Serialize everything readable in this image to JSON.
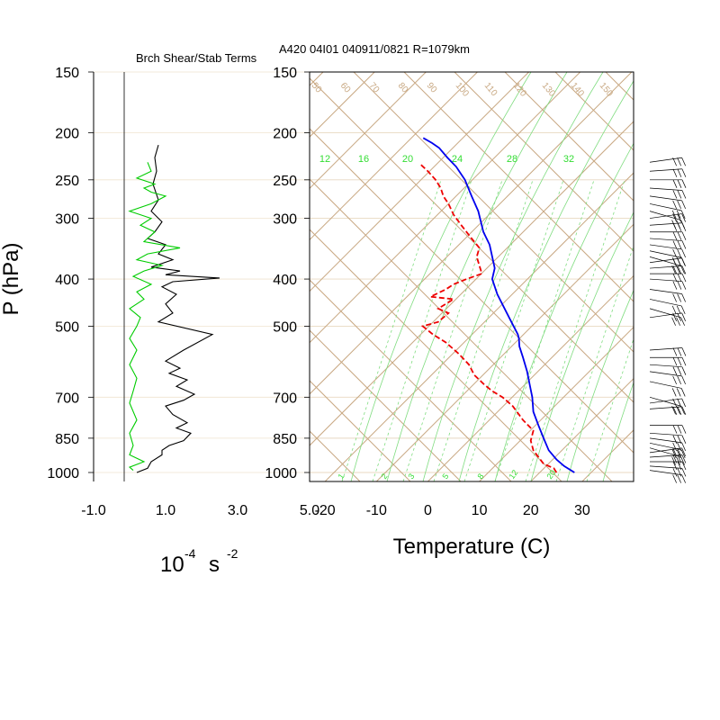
{
  "header": {
    "left_title": "Brch Shear/Stab Terms",
    "right_title": "A420 04I01 040911/0821 R=1079km"
  },
  "left_panel": {
    "ylabel": "P (hPa)",
    "xlabel_base": "10",
    "xlabel_exp": "-4",
    "xlabel_unit": "s",
    "xlabel_exp2": "-2"
  },
  "right_panel": {
    "xlabel": "Temperature (C)"
  },
  "chart_data": [
    {
      "type": "line",
      "panel": "shear-stability",
      "title": "Brch Shear/Stab Terms",
      "xlim": [
        -1.0,
        5.0
      ],
      "xticks": [
        -1.0,
        1.0,
        3.0,
        5.0
      ],
      "xtick_labels": [
        "-1.0",
        "1.0",
        "3.0",
        "5.0"
      ],
      "ylabel": "P (hPa)",
      "ylim": [
        1000,
        150
      ],
      "y_scale": "log",
      "yticks": [
        150,
        200,
        250,
        300,
        400,
        500,
        700,
        850,
        1000
      ],
      "ytick_labels": [
        "150",
        "200",
        "250",
        "300",
        "400",
        "500",
        "700",
        "850",
        "1000"
      ],
      "zero_line": 0,
      "series": [
        {
          "color": "#000000",
          "x": [
            0.8,
            0.7,
            0.75,
            0.65,
            0.8,
            0.6,
            0.9,
            0.7,
            0.5,
            1.0,
            0.8,
            1.2,
            0.6,
            1.4,
            1.0,
            2.5,
            1.2,
            0.9,
            1.3,
            1.0,
            1.2,
            0.8,
            2.3,
            1.5,
            1.0,
            1.4,
            1.1,
            1.6,
            1.3,
            1.8,
            1.5,
            1.0,
            1.2,
            1.6,
            1.3,
            1.7,
            1.5,
            1.1,
            0.9,
            0.9,
            0.6,
            0.5,
            0.2
          ],
          "p": [
            212,
            225,
            240,
            255,
            275,
            290,
            305,
            320,
            330,
            340,
            355,
            365,
            378,
            385,
            392,
            398,
            405,
            415,
            430,
            450,
            470,
            490,
            520,
            560,
            590,
            610,
            625,
            645,
            665,
            690,
            710,
            730,
            760,
            790,
            810,
            830,
            860,
            880,
            900,
            920,
            950,
            980,
            1000
          ]
        },
        {
          "color": "#00cc00",
          "x": [
            0.5,
            0.6,
            0.2,
            0.7,
            0.4,
            0.6,
            1.0,
            0.6,
            0.0,
            0.6,
            0.3,
            0.7,
            0.4,
            1.4,
            0.5,
            0.2,
            0.9,
            0.4,
            0.1,
            0.6,
            0.2,
            0.4,
            0.0,
            0.3,
            0.2,
            0.0,
            0.2,
            0.0,
            0.2,
            0.1,
            0.0,
            0.2,
            0.0,
            0.1,
            0.0,
            0.4,
            0.0,
            0.1
          ],
          "p": [
            230,
            240,
            248,
            255,
            260,
            265,
            270,
            280,
            290,
            300,
            310,
            320,
            335,
            345,
            355,
            365,
            375,
            385,
            395,
            410,
            425,
            440,
            460,
            480,
            500,
            530,
            560,
            600,
            640,
            680,
            720,
            780,
            830,
            880,
            920,
            950,
            975,
            990
          ]
        }
      ]
    },
    {
      "type": "line",
      "panel": "skew-t",
      "title": "A420 04I01 040911/0821 R=1079km",
      "xlabel": "Temperature (C)",
      "xlim": [
        -23,
        40
      ],
      "xticks": [
        -20,
        -10,
        0,
        10,
        20,
        30
      ],
      "xtick_labels": [
        "-20",
        "-10",
        "0",
        "10",
        "20",
        "30"
      ],
      "ylim": [
        1000,
        150
      ],
      "y_scale": "log",
      "yticks": [
        150,
        200,
        250,
        300,
        400,
        500,
        700,
        850,
        1000
      ],
      "ytick_labels": [
        "150",
        "200",
        "250",
        "300",
        "400",
        "500",
        "700",
        "850",
        "1000"
      ],
      "skew_deg_per_log_decade": 89.7,
      "isobars": [
        150,
        200,
        250,
        300,
        400,
        500,
        700,
        850,
        1000
      ],
      "top_isotherm_labels": [
        "50",
        "60",
        "70",
        "80",
        "90",
        "100",
        "110",
        "120",
        "130",
        "140",
        "150"
      ],
      "mixing_ratio_labels_top": [
        "12",
        "16",
        "20",
        "24",
        "28",
        "32"
      ],
      "mixing_ratio_labels_bottom": [
        "1",
        "2",
        "3",
        "5",
        "8",
        "12",
        "20"
      ],
      "colors": {
        "grid_brown": "#c8a882",
        "grid_green": "#7fdc7f",
        "label_green": "#33dd33",
        "temperature": "#0000ee",
        "dewpoint": "#ee0000",
        "isobar": "#e8d8c0"
      },
      "series": [
        {
          "color": "#0000ee",
          "style": "solid",
          "x_axis_c": [
            28.5,
            26.5,
            25.0,
            23.5,
            22.5,
            21.5,
            20.5,
            20.3,
            19.8,
            19.3,
            18.5,
            17.8,
            17.7,
            17.5,
            15.8,
            13.5,
            12.5,
            13.0,
            12.0,
            10.8,
            9.8,
            8.5,
            7.2,
            5.5,
            3.8,
            2.2,
            0.8,
            -0.9
          ],
          "p": [
            1000,
            970,
            940,
            900,
            850,
            800,
            750,
            700,
            660,
            620,
            580,
            550,
            530,
            520,
            480,
            430,
            400,
            380,
            340,
            320,
            290,
            270,
            250,
            235,
            225,
            215,
            210,
            205
          ]
        },
        {
          "color": "#ee0000",
          "style": "dashed",
          "x_axis_c": [
            25.0,
            24.5,
            22.5,
            20.5,
            20.0,
            20.5,
            18.5,
            16.5,
            14.5,
            12.5,
            11.0,
            9.0,
            8.0,
            6.0,
            3.5,
            1.0,
            -1.0,
            2.0,
            4.0,
            2.0,
            5.0,
            0.5,
            3.5,
            5.0,
            7.5,
            10.5,
            9.5,
            10.0,
            8.5,
            6.5,
            5.0,
            4.0,
            3.0,
            2.5,
            1.5,
            0.0,
            -1.5
          ],
          "p": [
            1000,
            980,
            960,
            900,
            860,
            820,
            780,
            730,
            700,
            680,
            660,
            630,
            600,
            570,
            540,
            520,
            500,
            490,
            470,
            460,
            440,
            435,
            420,
            410,
            400,
            390,
            360,
            345,
            330,
            310,
            295,
            280,
            270,
            260,
            250,
            240,
            232
          ]
        }
      ],
      "wind_barbs": {
        "color": "#000000",
        "levels": [
          230,
          240,
          250,
          260,
          270,
          280,
          290,
          300,
          310,
          320,
          330,
          340,
          350,
          360,
          370,
          380,
          390,
          400,
          420,
          440,
          460,
          480,
          560,
          580,
          600,
          620,
          650,
          700,
          720,
          740,
          800,
          830,
          850,
          870,
          890,
          910,
          930,
          950,
          970,
          990
        ]
      }
    }
  ]
}
